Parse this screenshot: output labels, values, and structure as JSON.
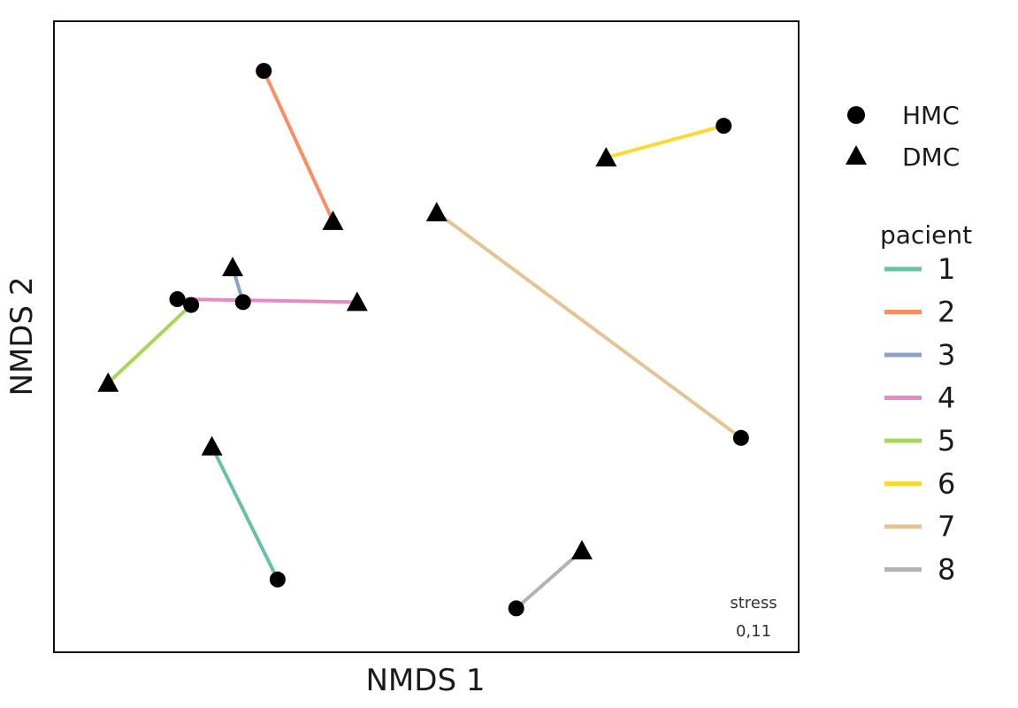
{
  "chart_data": {
    "type": "scatter",
    "xlabel": "NMDS 1",
    "ylabel": "NMDS 2",
    "xlim": [
      0,
      100
    ],
    "ylim": [
      0,
      100
    ],
    "grid": false,
    "shapes": [
      {
        "name": "HMC",
        "marker": "circle"
      },
      {
        "name": "DMC",
        "marker": "triangle"
      }
    ],
    "legend_title": "pacient",
    "legend_placement": "right",
    "stress_label": "stress",
    "stress_value": "0,11",
    "series": [
      {
        "name": "1",
        "color": "#66c2a5",
        "HMC": [
          28.5,
          8.0
        ],
        "DMC": [
          19.0,
          31.0
        ]
      },
      {
        "name": "2",
        "color": "#fc8d62",
        "HMC": [
          26.5,
          96.0
        ],
        "DMC": [
          36.5,
          70.0
        ]
      },
      {
        "name": "3",
        "color": "#8da0cb",
        "HMC": [
          23.5,
          56.0
        ],
        "DMC": [
          22.0,
          62.0
        ]
      },
      {
        "name": "4",
        "color": "#e78ac3",
        "HMC": [
          14.0,
          56.5
        ],
        "DMC": [
          40.0,
          56.0
        ]
      },
      {
        "name": "5",
        "color": "#a6d854",
        "HMC": [
          16.0,
          55.5
        ],
        "DMC": [
          4.0,
          42.0
        ]
      },
      {
        "name": "6",
        "color": "#ffd92f",
        "HMC": [
          93.0,
          86.5
        ],
        "DMC": [
          76.0,
          81.0
        ]
      },
      {
        "name": "7",
        "color": "#e5c494",
        "HMC": [
          95.5,
          32.5
        ],
        "DMC": [
          51.5,
          71.5
        ]
      },
      {
        "name": "8",
        "color": "#b3b3b3",
        "HMC": [
          63.0,
          3.0
        ],
        "DMC": [
          72.5,
          13.0
        ]
      }
    ]
  }
}
